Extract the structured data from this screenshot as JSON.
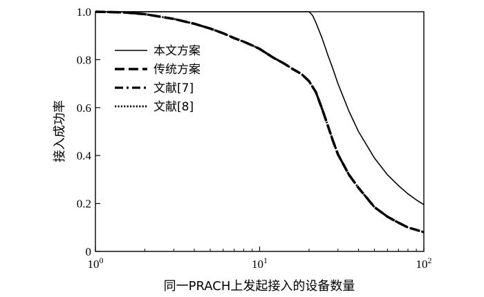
{
  "chart_data": {
    "type": "line",
    "xlabel": "同一PRACH上发起接入的设备数量",
    "ylabel": "接入成功率",
    "x_scale": "log",
    "xlim": [
      1,
      100
    ],
    "ylim": [
      0,
      1.0
    ],
    "x_ticks": [
      {
        "value": 1,
        "base": "10",
        "exp": "0"
      },
      {
        "value": 10,
        "base": "10",
        "exp": "1"
      },
      {
        "value": 100,
        "base": "10",
        "exp": "2"
      }
    ],
    "y_ticks": [
      {
        "value": 0,
        "label": "0"
      },
      {
        "value": 0.2,
        "label": "0.2"
      },
      {
        "value": 0.4,
        "label": "0.4"
      },
      {
        "value": 0.6,
        "label": "0.6"
      },
      {
        "value": 0.8,
        "label": "0.8"
      },
      {
        "value": 1.0,
        "label": "1.0"
      }
    ],
    "grid": false,
    "legend_position": "top-left",
    "series": [
      {
        "name": "本文方案",
        "style": "solid",
        "width": 1.6,
        "color": "#000000",
        "x": [
          1,
          5,
          10,
          15,
          20,
          21,
          22,
          24,
          26,
          28,
          30,
          35,
          40,
          50,
          60,
          70,
          80,
          90,
          100
        ],
        "y": [
          1.0,
          1.0,
          1.0,
          1.0,
          1.0,
          0.985,
          0.955,
          0.89,
          0.82,
          0.76,
          0.7,
          0.585,
          0.5,
          0.39,
          0.32,
          0.275,
          0.24,
          0.215,
          0.195
        ]
      },
      {
        "name": "传统方案",
        "style": "dashed",
        "width": 3.6,
        "color": "#000000",
        "x": [
          1,
          1.5,
          2,
          3,
          4,
          5,
          6,
          7,
          8,
          9,
          10,
          12,
          14,
          16,
          18,
          20,
          22,
          24,
          26,
          28,
          30,
          35,
          40,
          50,
          60,
          70,
          80,
          90,
          100
        ],
        "y": [
          1.0,
          0.997,
          0.99,
          0.97,
          0.95,
          0.93,
          0.91,
          0.89,
          0.875,
          0.86,
          0.845,
          0.81,
          0.785,
          0.76,
          0.74,
          0.71,
          0.665,
          0.595,
          0.525,
          0.46,
          0.405,
          0.32,
          0.265,
          0.185,
          0.145,
          0.12,
          0.1,
          0.09,
          0.08
        ]
      },
      {
        "name": "文献[7]",
        "style": "dashdot",
        "width": 3.2,
        "color": "#000000",
        "x": [
          1,
          1.5,
          2,
          3,
          4,
          5,
          6,
          7,
          8,
          9,
          10,
          12,
          14,
          16,
          18,
          20,
          22,
          24,
          26,
          28,
          30,
          35,
          40,
          50,
          60,
          70,
          80,
          90,
          100
        ],
        "y": [
          1.0,
          0.997,
          0.99,
          0.97,
          0.95,
          0.93,
          0.91,
          0.89,
          0.875,
          0.86,
          0.845,
          0.81,
          0.785,
          0.76,
          0.74,
          0.71,
          0.665,
          0.595,
          0.525,
          0.46,
          0.405,
          0.32,
          0.265,
          0.185,
          0.145,
          0.12,
          0.1,
          0.09,
          0.08
        ]
      },
      {
        "name": "文献[8]",
        "style": "dotted",
        "width": 2.8,
        "color": "#000000",
        "x": [
          1,
          1.5,
          2,
          3,
          4,
          5,
          6,
          7,
          8,
          9,
          10,
          12,
          14,
          16,
          18,
          20,
          22,
          24,
          26,
          28,
          30,
          35,
          40,
          50,
          60,
          70,
          80,
          90,
          100
        ],
        "y": [
          1.0,
          0.997,
          0.99,
          0.97,
          0.95,
          0.93,
          0.91,
          0.89,
          0.875,
          0.86,
          0.845,
          0.81,
          0.785,
          0.76,
          0.74,
          0.71,
          0.665,
          0.595,
          0.525,
          0.46,
          0.405,
          0.32,
          0.265,
          0.185,
          0.145,
          0.12,
          0.1,
          0.09,
          0.08
        ]
      }
    ]
  }
}
